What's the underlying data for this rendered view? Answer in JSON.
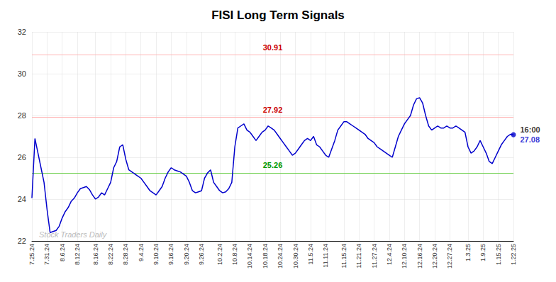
{
  "chart_data": {
    "type": "line",
    "title": "FISI Long Term Signals",
    "color": "#0000cc",
    "categories": [
      "7.25.24",
      null,
      null,
      null,
      null,
      "7.31.24",
      null,
      null,
      null,
      null,
      "8.6.24",
      null,
      null,
      null,
      null,
      "8.12.24",
      null,
      null,
      null,
      null,
      null,
      "8.16.24",
      null,
      null,
      null,
      null,
      "8.22.24",
      null,
      null,
      null,
      null,
      "8.28.24",
      null,
      null,
      null,
      null,
      "9.4.24",
      null,
      null,
      null,
      null,
      "9.10.24",
      null,
      null,
      null,
      null,
      "9.16.24",
      null,
      null,
      null,
      null,
      "9.20.24",
      null,
      null,
      null,
      null,
      "9.26.24",
      null,
      null,
      null,
      null,
      null,
      "10.2.24",
      null,
      null,
      null,
      null,
      "10.8.24",
      null,
      null,
      null,
      null,
      "10.14.24",
      null,
      null,
      null,
      null,
      "10.18.24",
      null,
      null,
      null,
      null,
      "10.24.24",
      null,
      null,
      null,
      null,
      "10.30.24",
      null,
      null,
      null,
      null,
      "11.5.24",
      null,
      null,
      null,
      null,
      "11.11.24",
      null,
      null,
      null,
      null,
      null,
      "11.15.24",
      null,
      null,
      null,
      null,
      "11.21.24",
      null,
      null,
      null,
      null,
      "11.27.24",
      null,
      null,
      null,
      null,
      "12.4.24",
      null,
      null,
      null,
      null,
      "12.10.24",
      null,
      null,
      null,
      null,
      "12.16.24",
      null,
      null,
      null,
      null,
      "12.20.24",
      null,
      null,
      null,
      null,
      "12.27.24",
      null,
      null,
      null,
      null,
      null,
      "1.3.25",
      null,
      null,
      null,
      null,
      "1.9.25",
      null,
      null,
      null,
      null,
      "1.15.25",
      null,
      null,
      null,
      null,
      "1.22.25"
    ],
    "values": [
      24.05,
      26.9,
      26.2,
      25.5,
      24.8,
      23.5,
      22.4,
      22.45,
      22.5,
      22.7,
      23.1,
      23.4,
      23.6,
      23.9,
      24.05,
      24.3,
      24.5,
      24.55,
      24.6,
      24.45,
      24.2,
      24.0,
      24.1,
      24.3,
      24.2,
      24.5,
      24.8,
      25.5,
      25.8,
      26.5,
      26.6,
      25.9,
      25.4,
      25.3,
      25.2,
      25.1,
      25.0,
      24.8,
      24.6,
      24.4,
      24.3,
      24.2,
      24.4,
      24.6,
      25.0,
      25.3,
      25.5,
      25.4,
      25.35,
      25.3,
      25.2,
      25.1,
      24.8,
      24.4,
      24.3,
      24.35,
      24.4,
      25.0,
      25.25,
      25.4,
      24.8,
      24.6,
      24.4,
      24.3,
      24.35,
      24.5,
      24.8,
      26.5,
      27.4,
      27.5,
      27.6,
      27.3,
      27.2,
      27.0,
      26.8,
      27.0,
      27.2,
      27.3,
      27.5,
      27.4,
      27.3,
      27.1,
      26.9,
      26.7,
      26.5,
      26.3,
      26.1,
      26.2,
      26.4,
      26.6,
      26.8,
      26.9,
      26.8,
      27.0,
      26.6,
      26.5,
      26.3,
      26.1,
      26.0,
      26.4,
      26.8,
      27.3,
      27.5,
      27.7,
      27.7,
      27.6,
      27.5,
      27.4,
      27.3,
      27.2,
      27.1,
      26.9,
      26.8,
      26.7,
      26.5,
      26.4,
      26.3,
      26.2,
      26.1,
      26.0,
      26.5,
      27.0,
      27.3,
      27.6,
      27.8,
      28.0,
      28.5,
      28.8,
      28.85,
      28.6,
      28.0,
      27.5,
      27.3,
      27.4,
      27.5,
      27.4,
      27.4,
      27.5,
      27.4,
      27.4,
      27.5,
      27.4,
      27.3,
      27.2,
      26.5,
      26.2,
      26.3,
      26.5,
      26.8,
      26.5,
      26.2,
      25.8,
      25.7,
      26.0,
      26.3,
      26.6,
      26.8,
      27.0,
      27.1,
      27.08
    ],
    "ylim": [
      22,
      32
    ],
    "yticks": [
      22,
      24,
      26,
      28,
      30,
      32
    ],
    "grid": true,
    "hlines": [
      {
        "value": 30.91,
        "label": "30.91",
        "color": "#ffb3b3",
        "label_color": "#cc0000"
      },
      {
        "value": 27.92,
        "label": "27.92",
        "color": "#ffb3b3",
        "label_color": "#cc0000"
      },
      {
        "value": 25.26,
        "label": "25.26",
        "color": "#66cc44",
        "label_color": "#009900"
      }
    ],
    "end_point": {
      "value": 27.08,
      "label": "27.08",
      "time": "16:00",
      "color": "#0000cc"
    },
    "watermark": "Stock Traders Daily",
    "watermark_color": "#bbbbbb"
  }
}
